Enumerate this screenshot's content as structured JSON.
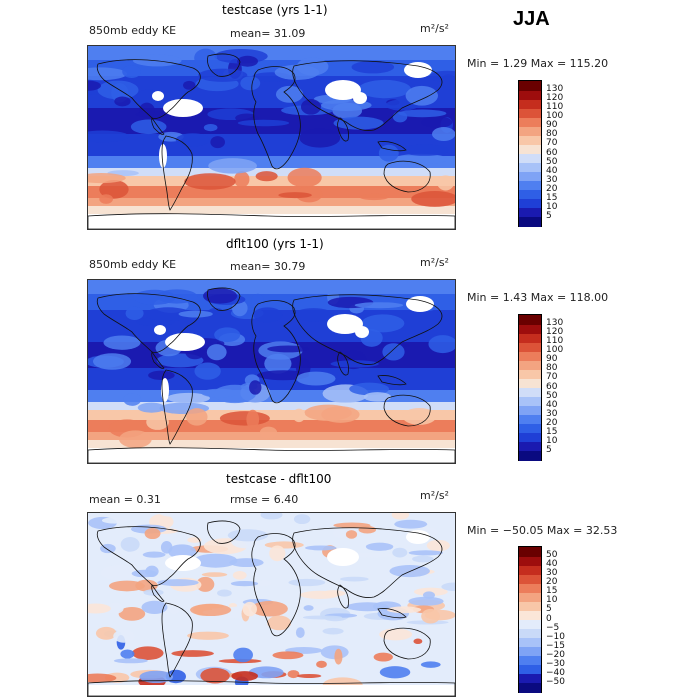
{
  "season": "JJA",
  "panels": [
    {
      "id": "top",
      "title": "testcase (yrs 1-1)",
      "left_label": "850mb eddy KE",
      "stat_text": "mean=  31.09",
      "units": "m²/s²",
      "range_text": "Min =    1.29 Max = 115.20"
    },
    {
      "id": "mid",
      "title": "dflt100 (yrs 1-1)",
      "left_label": "850mb eddy KE",
      "stat_text": "mean=  30.79",
      "units": "m²/s²",
      "range_text": "Min =    1.43 Max = 118.00"
    },
    {
      "id": "bot",
      "title": "testcase - dflt100",
      "left_label": "mean =    0.31",
      "stat_text": "rmse =    6.40",
      "units": "m²/s²",
      "range_text": "Min = −50.05 Max =   32.53"
    }
  ],
  "chart_data": [
    {
      "type": "heatmap",
      "title": "testcase (yrs 1-1)",
      "variable": "850mb eddy KE",
      "units": "m²/s²",
      "mean": 31.09,
      "min": 1.29,
      "max": 115.2,
      "colorbar_levels": [
        "5",
        "10",
        "15",
        "20",
        "30",
        "40",
        "50",
        "60",
        "70",
        "80",
        "90",
        "100",
        "110",
        "120",
        "130"
      ]
    },
    {
      "type": "heatmap",
      "title": "dflt100 (yrs 1-1)",
      "variable": "850mb eddy KE",
      "units": "m²/s²",
      "mean": 30.79,
      "min": 1.43,
      "max": 118.0,
      "colorbar_levels": [
        "5",
        "10",
        "15",
        "20",
        "30",
        "40",
        "50",
        "60",
        "70",
        "80",
        "90",
        "100",
        "110",
        "120",
        "130"
      ]
    },
    {
      "type": "heatmap",
      "title": "testcase - dflt100",
      "units": "m²/s²",
      "mean": 0.31,
      "rmse": 6.4,
      "min": -50.05,
      "max": 32.53,
      "colorbar_levels": [
        "−50",
        "−40",
        "−30",
        "−20",
        "−15",
        "−10",
        "−5",
        "0",
        "5",
        "10",
        "15",
        "20",
        "30",
        "40",
        "50"
      ]
    }
  ],
  "colors": {
    "seq": [
      "#0a0a80",
      "#1a1ab0",
      "#1f3fd6",
      "#2f5fe6",
      "#4f7ff0",
      "#7fa3f5",
      "#a8c2f8",
      "#d0ddf8",
      "#f7e3d3",
      "#f8c7a8",
      "#f3a481",
      "#ec7d5b",
      "#dc5338",
      "#c52d1e",
      "#9e0d0d",
      "#6a0000"
    ],
    "div": [
      "#0a0a80",
      "#1a1ab0",
      "#2f5fe6",
      "#4f7ff0",
      "#7fa3f5",
      "#a8c2f8",
      "#c9daf8",
      "#e3ecfb",
      "#fbe6d8",
      "#f8c7a8",
      "#f3a481",
      "#ec7d5b",
      "#dc5338",
      "#c52d1e",
      "#9e0d0d",
      "#6a0000"
    ]
  }
}
